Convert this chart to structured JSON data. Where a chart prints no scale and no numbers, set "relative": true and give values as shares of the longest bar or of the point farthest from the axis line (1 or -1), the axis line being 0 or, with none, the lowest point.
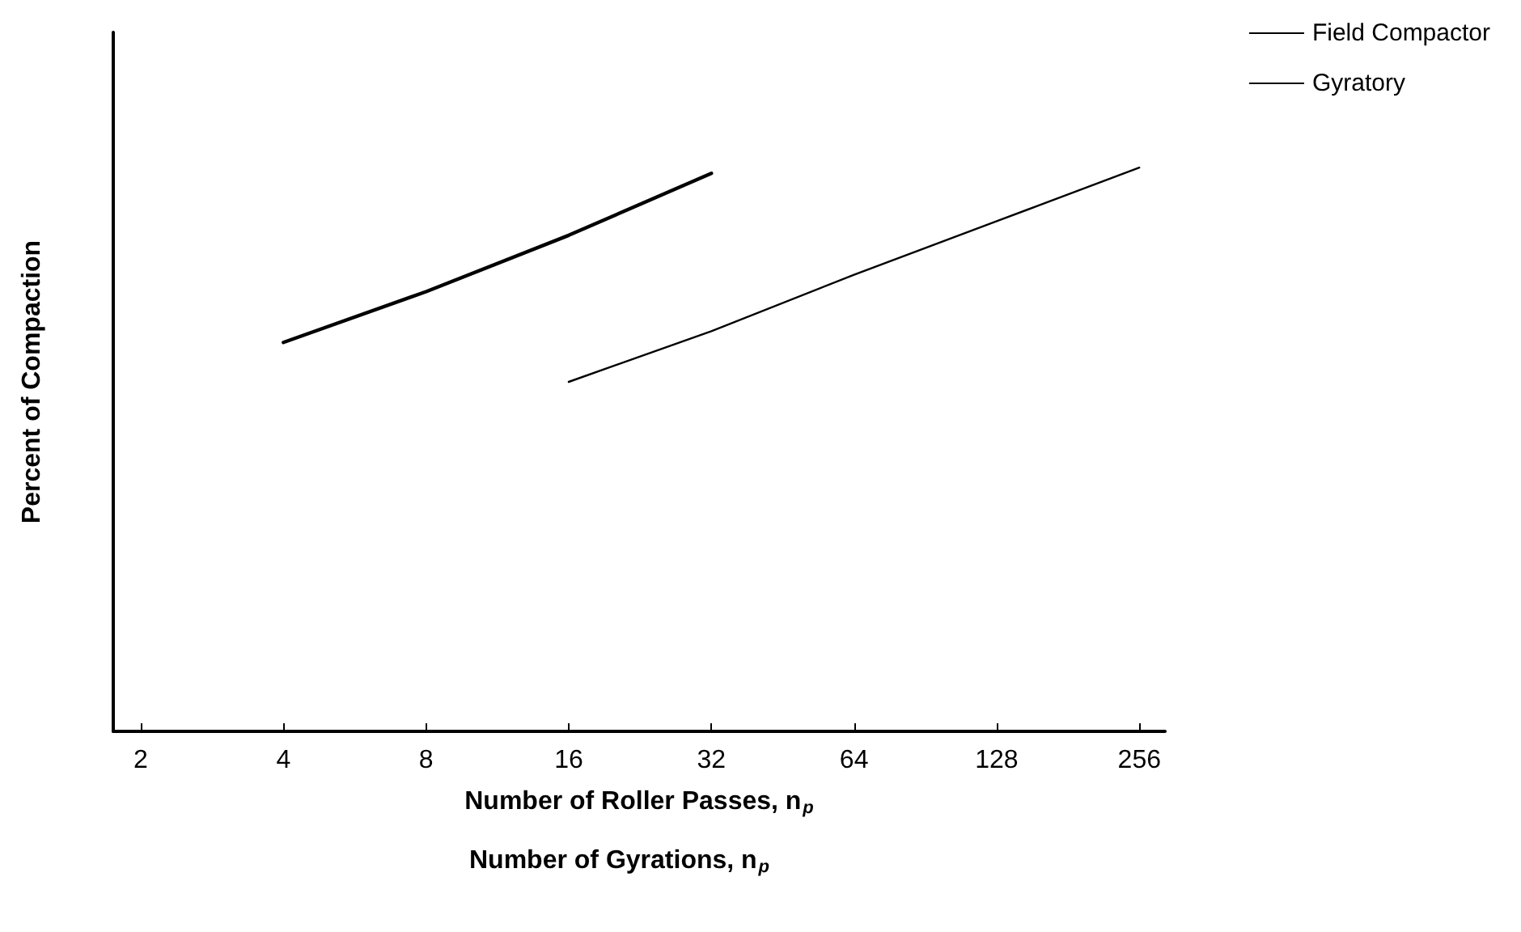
{
  "chart_data": {
    "type": "line",
    "relative": true,
    "log": "x",
    "xlabel": "Number of Roller Passes, n$_{p}$",
    "ylabel": "Percent of Compaction",
    "annotations": [
      "Number of Gyrations, n$_{p}$"
    ],
    "xlim": [
      1.75,
      290
    ],
    "xticks": [
      2,
      4,
      8,
      16,
      32,
      64,
      128,
      256
    ],
    "series": [
      {
        "name": "Field Compactor",
        "color": "#000000",
        "x": [
          4,
          8,
          16,
          32
        ],
        "values": [
          0.69,
          0.78,
          0.88,
          0.99
        ]
      },
      {
        "name": "Gyratory",
        "color": "#000000",
        "x": [
          16,
          32,
          64,
          128,
          256
        ],
        "values": [
          0.62,
          0.71,
          0.81,
          0.905,
          1
        ]
      }
    ],
    "grid": false,
    "legend": "top right",
    "marker": "none",
    "line_style": "solid"
  }
}
